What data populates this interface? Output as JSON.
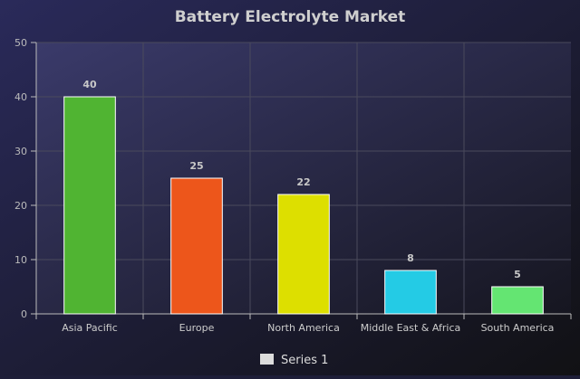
{
  "chart_data": {
    "type": "bar",
    "title": "Battery Electrolyte Market",
    "categories": [
      "Asia Pacific",
      "Europe",
      "North America",
      "Middle East & Africa",
      "South America"
    ],
    "series": [
      {
        "name": "Series 1",
        "values": [
          40,
          25,
          22,
          8,
          5
        ],
        "colors": [
          "#50b432",
          "#ed561b",
          "#dddf00",
          "#24cbe5",
          "#64e572"
        ]
      }
    ],
    "ylim": [
      0,
      50
    ],
    "yticks": [
      0,
      10,
      20,
      30,
      40,
      50
    ],
    "grid": true,
    "legend": "bottom-center",
    "data_labels": true
  }
}
